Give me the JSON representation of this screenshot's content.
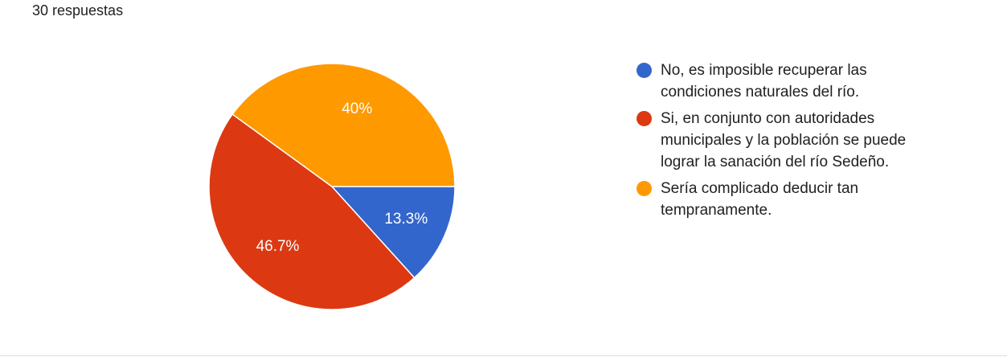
{
  "chart_data": {
    "type": "pie",
    "subtitle": "30 respuestas",
    "categories": [
      "No, es imposible recuperar las condiciones naturales del río.",
      "Si, en conjunto con autoridades municipales y la población se puede lograr la sanación del río Sedeño.",
      "Sería complicado deducir tan tempranamente."
    ],
    "values": [
      13.3,
      46.7,
      40
    ],
    "value_labels": [
      "13.3%",
      "46.7%",
      "40%"
    ],
    "colors": [
      "#3366cc",
      "#dc3912",
      "#ff9900"
    ],
    "legend": "right"
  }
}
